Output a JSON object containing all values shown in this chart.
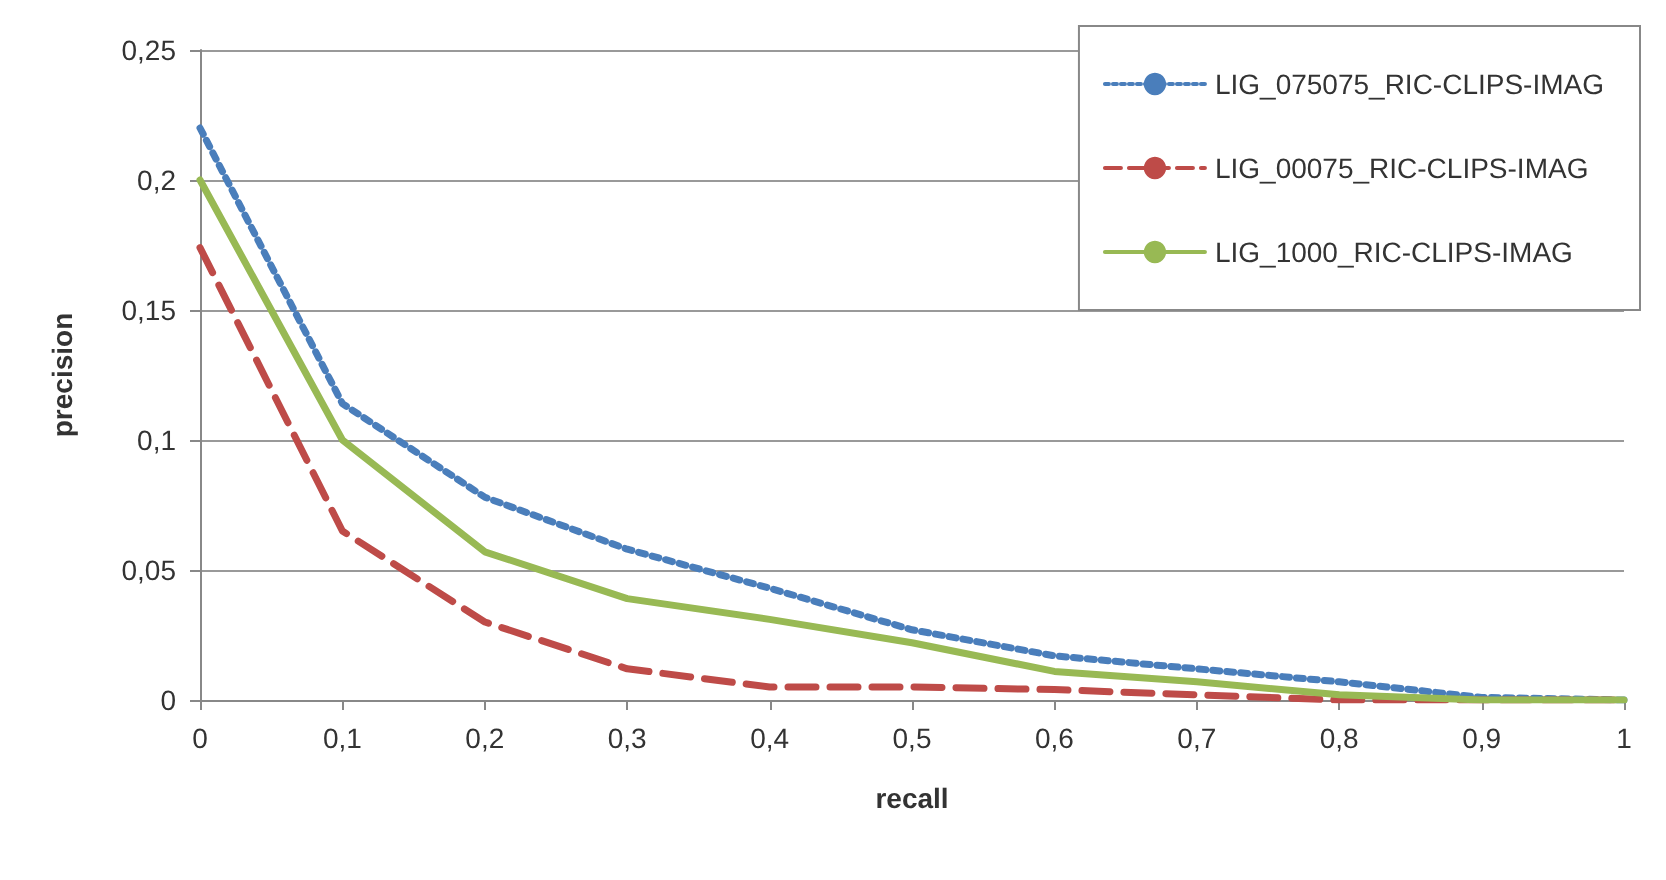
{
  "chart_data": {
    "type": "line",
    "xlabel": "recall",
    "ylabel": "precision",
    "x": [
      0,
      0.1,
      0.2,
      0.3,
      0.4,
      0.5,
      0.6,
      0.7,
      0.8,
      0.9,
      1
    ],
    "series": [
      {
        "name": "LIG_075075_RIC-CLIPS-IMAG",
        "color": "#4a7ebb",
        "line_style": "dotted",
        "values": [
          0.22,
          0.114,
          0.078,
          0.058,
          0.043,
          0.027,
          0.017,
          0.012,
          0.007,
          0.001,
          0
        ]
      },
      {
        "name": "LIG_00075_RIC-CLIPS-IMAG",
        "color": "#be4b48",
        "line_style": "dashed",
        "values": [
          0.174,
          0.065,
          0.03,
          0.012,
          0.005,
          0.005,
          0.004,
          0.002,
          0,
          0,
          0
        ]
      },
      {
        "name": "LIG_1000_RIC-CLIPS-IMAG",
        "color": "#98b954",
        "line_style": "solid",
        "values": [
          0.2,
          0.1,
          0.057,
          0.039,
          0.031,
          0.022,
          0.011,
          0.007,
          0.002,
          0,
          0
        ]
      }
    ],
    "xlim": [
      0,
      1
    ],
    "ylim": [
      0,
      0.25
    ],
    "xticks": [
      0,
      {
        "value": 0.1,
        "label": "0,1"
      },
      {
        "value": 0.2,
        "label": "0,2"
      },
      {
        "value": 0.3,
        "label": "0,3"
      },
      {
        "value": 0.4,
        "label": "0,4"
      },
      {
        "value": 0.5,
        "label": "0,5"
      },
      {
        "value": 0.6,
        "label": "0,6"
      },
      {
        "value": 0.7,
        "label": "0,7"
      },
      {
        "value": 0.8,
        "label": "0,8"
      },
      {
        "value": 0.9,
        "label": "0,9"
      },
      1
    ],
    "yticks": [
      0,
      {
        "value": 0.05,
        "label": "0,05"
      },
      {
        "value": 0.1,
        "label": "0,1"
      },
      {
        "value": 0.15,
        "label": "0,15"
      },
      {
        "value": 0.2,
        "label": "0,2"
      },
      {
        "value": 0.25,
        "label": "0,25"
      }
    ],
    "grid": "y",
    "legend": "top right",
    "marker": "none"
  }
}
